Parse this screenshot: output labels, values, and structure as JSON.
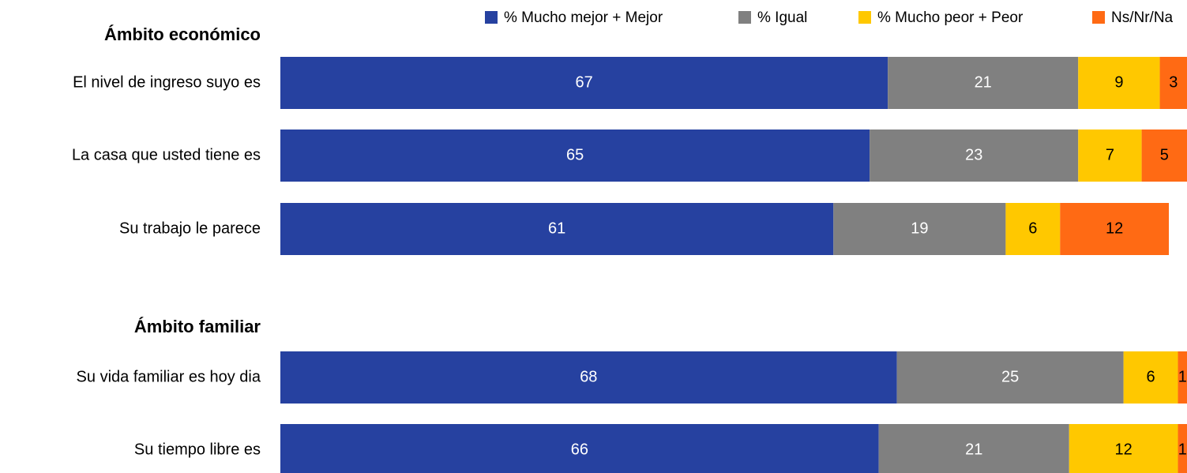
{
  "chart_data": [
    {
      "type": "stacked-bar",
      "title": "Ámbito económico",
      "categories": [
        "El nivel de ingreso suyo es",
        "La casa que usted tiene es",
        "Su trabajo le parece"
      ],
      "xlim": [
        0,
        100
      ],
      "series": [
        {
          "name": "% Mucho mejor + Mejor",
          "color": "#2641a0",
          "values": [
            67,
            65,
            61
          ]
        },
        {
          "name": "% Igual",
          "color": "#808080",
          "values": [
            21,
            23,
            19
          ]
        },
        {
          "name": "% Mucho peor + Peor",
          "color": "#ffc800",
          "values": [
            9,
            7,
            6
          ]
        },
        {
          "name": "Ns/Nr/Na",
          "color": "#ff6a14",
          "values": [
            3,
            5,
            12
          ]
        }
      ]
    },
    {
      "type": "stacked-bar",
      "title": "Ámbito familiar",
      "categories": [
        "Su vida familiar es hoy dia",
        "Su tiempo libre es"
      ],
      "xlim": [
        0,
        100
      ],
      "series": [
        {
          "name": "% Mucho mejor + Mejor",
          "color": "#2641a0",
          "values": [
            68,
            66
          ]
        },
        {
          "name": "% Igual",
          "color": "#808080",
          "values": [
            25,
            21
          ]
        },
        {
          "name": "% Mucho peor + Peor",
          "color": "#ffc800",
          "values": [
            6,
            12
          ]
        },
        {
          "name": "Ns/Nr/Na",
          "color": "#ff6a14",
          "values": [
            1,
            1
          ]
        }
      ]
    }
  ]
}
